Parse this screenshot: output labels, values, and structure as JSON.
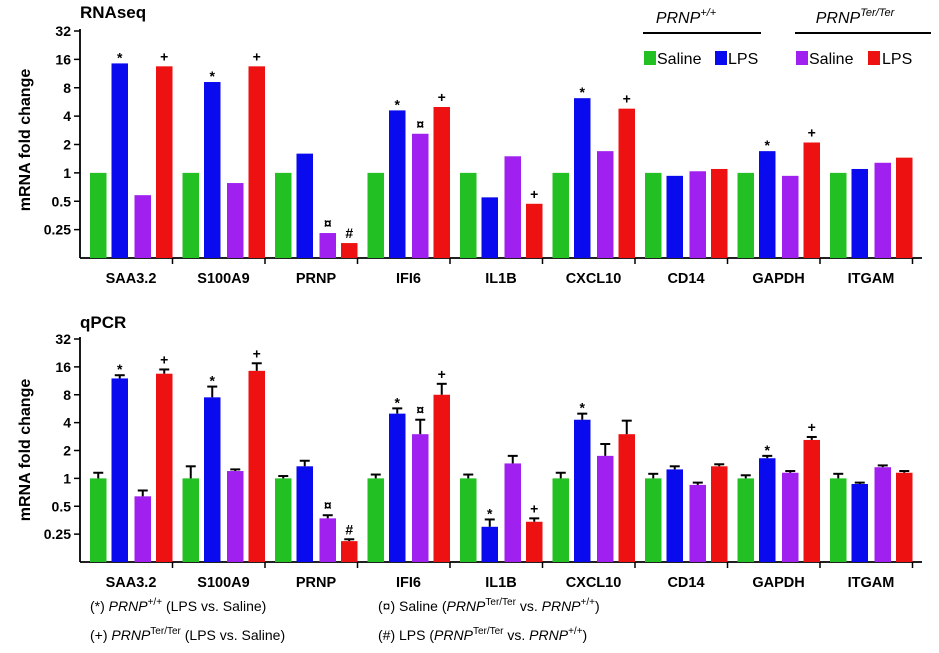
{
  "legend": {
    "group1": {
      "gene": "PRNP",
      "genotype": "+/+"
    },
    "group2": {
      "gene": "PRNP",
      "genotype": "Ter/Ter"
    },
    "entries": [
      {
        "label": "Saline",
        "color": "#22c022"
      },
      {
        "label": "LPS",
        "color": "#0a0aee"
      },
      {
        "label": "Saline",
        "color": "#a020f0"
      },
      {
        "label": "LPS",
        "color": "#ee1111"
      }
    ]
  },
  "chart_data": [
    {
      "type": "bar",
      "title": "RNAseq",
      "ylabel": "mRNA fold change",
      "yscale": "log2",
      "ylim": [
        0.125,
        32
      ],
      "yticks": [
        "0.25",
        "0.5",
        "1",
        "2",
        "4",
        "8",
        "16",
        "32"
      ],
      "categories": [
        "SAA3.2",
        "S100A9",
        "PRNP",
        "IFI6",
        "IL1B",
        "CXCL10",
        "CD14",
        "GAPDH",
        "ITGAM"
      ],
      "series": [
        {
          "name": "PRNP+/+ Saline",
          "color": "#22c022",
          "values": [
            1,
            1,
            1,
            1,
            1,
            1,
            1,
            1,
            1
          ]
        },
        {
          "name": "PRNP+/+ LPS",
          "color": "#0a0aee",
          "values": [
            14.5,
            9.2,
            1.6,
            4.6,
            0.55,
            6.2,
            0.93,
            1.7,
            1.1
          ]
        },
        {
          "name": "PRNPTer/Ter Saline",
          "color": "#a020f0",
          "values": [
            0.58,
            0.78,
            0.23,
            2.6,
            1.5,
            1.7,
            1.04,
            0.93,
            1.28
          ]
        },
        {
          "name": "PRNPTer/Ter LPS",
          "color": "#ee1111",
          "values": [
            13.5,
            13.5,
            0.18,
            5.0,
            0.47,
            4.8,
            1.1,
            2.1,
            1.45
          ]
        }
      ],
      "annotations": [
        {
          "category": "SAA3.2",
          "series": 1,
          "symbol": "*"
        },
        {
          "category": "SAA3.2",
          "series": 3,
          "symbol": "+"
        },
        {
          "category": "S100A9",
          "series": 1,
          "symbol": "*"
        },
        {
          "category": "S100A9",
          "series": 3,
          "symbol": "+"
        },
        {
          "category": "PRNP",
          "series": 2,
          "symbol": "¤"
        },
        {
          "category": "PRNP",
          "series": 3,
          "symbol": "#"
        },
        {
          "category": "IFI6",
          "series": 1,
          "symbol": "*"
        },
        {
          "category": "IFI6",
          "series": 2,
          "symbol": "¤"
        },
        {
          "category": "IFI6",
          "series": 3,
          "symbol": "+"
        },
        {
          "category": "IL1B",
          "series": 3,
          "symbol": "+"
        },
        {
          "category": "CXCL10",
          "series": 1,
          "symbol": "*"
        },
        {
          "category": "CXCL10",
          "series": 3,
          "symbol": "+"
        },
        {
          "category": "GAPDH",
          "series": 1,
          "symbol": "*"
        },
        {
          "category": "GAPDH",
          "series": 3,
          "symbol": "+"
        }
      ]
    },
    {
      "type": "bar",
      "title": "qPCR",
      "ylabel": "mRNA fold change",
      "yscale": "log2",
      "ylim": [
        0.125,
        32
      ],
      "yticks": [
        "0.25",
        "0.5",
        "1",
        "2",
        "4",
        "8",
        "16",
        "32"
      ],
      "categories": [
        "SAA3.2",
        "S100A9",
        "PRNP",
        "IFI6",
        "IL1B",
        "CXCL10",
        "CD14",
        "GAPDH",
        "ITGAM"
      ],
      "series": [
        {
          "name": "PRNP+/+ Saline",
          "color": "#22c022",
          "values": [
            1,
            1,
            1,
            1,
            1,
            1,
            1,
            1,
            1
          ],
          "errors": [
            1.15,
            1.35,
            1.06,
            1.1,
            1.1,
            1.15,
            1.12,
            1.08,
            1.12
          ]
        },
        {
          "name": "PRNP+/+ LPS",
          "color": "#0a0aee",
          "values": [
            12.0,
            7.5,
            1.35,
            5.0,
            0.3,
            4.3,
            1.25,
            1.65,
            0.87
          ],
          "errors": [
            13.0,
            9.8,
            1.55,
            5.7,
            0.36,
            5.0,
            1.35,
            1.75,
            0.9
          ]
        },
        {
          "name": "PRNPTer/Ter Saline",
          "color": "#a020f0",
          "values": [
            0.64,
            1.2,
            0.37,
            3.0,
            1.45,
            1.75,
            0.85,
            1.15,
            1.32
          ],
          "errors": [
            0.74,
            1.25,
            0.4,
            4.3,
            1.75,
            2.35,
            0.9,
            1.2,
            1.38
          ]
        },
        {
          "name": "PRNPTer/Ter LPS",
          "color": "#ee1111",
          "values": [
            13.5,
            14.5,
            0.21,
            8.0,
            0.34,
            3.0,
            1.35,
            2.6,
            1.15
          ],
          "errors": [
            15.0,
            17.5,
            0.22,
            10.5,
            0.37,
            4.2,
            1.42,
            2.8,
            1.2
          ]
        }
      ],
      "annotations": [
        {
          "category": "SAA3.2",
          "series": 1,
          "symbol": "*"
        },
        {
          "category": "SAA3.2",
          "series": 3,
          "symbol": "+"
        },
        {
          "category": "S100A9",
          "series": 1,
          "symbol": "*"
        },
        {
          "category": "S100A9",
          "series": 3,
          "symbol": "+"
        },
        {
          "category": "PRNP",
          "series": 2,
          "symbol": "¤"
        },
        {
          "category": "PRNP",
          "series": 3,
          "symbol": "#"
        },
        {
          "category": "IFI6",
          "series": 1,
          "symbol": "*"
        },
        {
          "category": "IFI6",
          "series": 2,
          "symbol": "¤"
        },
        {
          "category": "IFI6",
          "series": 3,
          "symbol": "+"
        },
        {
          "category": "IL1B",
          "series": 1,
          "symbol": "*"
        },
        {
          "category": "IL1B",
          "series": 3,
          "symbol": "+"
        },
        {
          "category": "CXCL10",
          "series": 1,
          "symbol": "*"
        },
        {
          "category": "GAPDH",
          "series": 1,
          "symbol": "*"
        },
        {
          "category": "GAPDH",
          "series": 3,
          "symbol": "+"
        }
      ]
    }
  ],
  "footnotes": [
    {
      "symbol": "(*)",
      "gene": "PRNP",
      "sup": "+/+",
      "rest": "(LPS vs. Saline)"
    },
    {
      "symbol": "(+)",
      "gene": "PRNP",
      "sup": "Ter/Ter",
      "rest": "(LPS vs. Saline)"
    },
    {
      "symbol": "(¤)",
      "prefix": "Saline (",
      "gene1": "PRNP",
      "sup1": "Ter/Ter",
      "mid": "vs.",
      "gene2": "PRNP",
      "sup2": "+/+",
      "suffix": ")"
    },
    {
      "symbol": "(#)",
      "prefix": "LPS (",
      "gene1": "PRNP",
      "sup1": "Ter/Ter",
      "mid": "vs.",
      "gene2": "PRNP",
      "sup2": "+/+",
      "suffix": ")"
    }
  ]
}
